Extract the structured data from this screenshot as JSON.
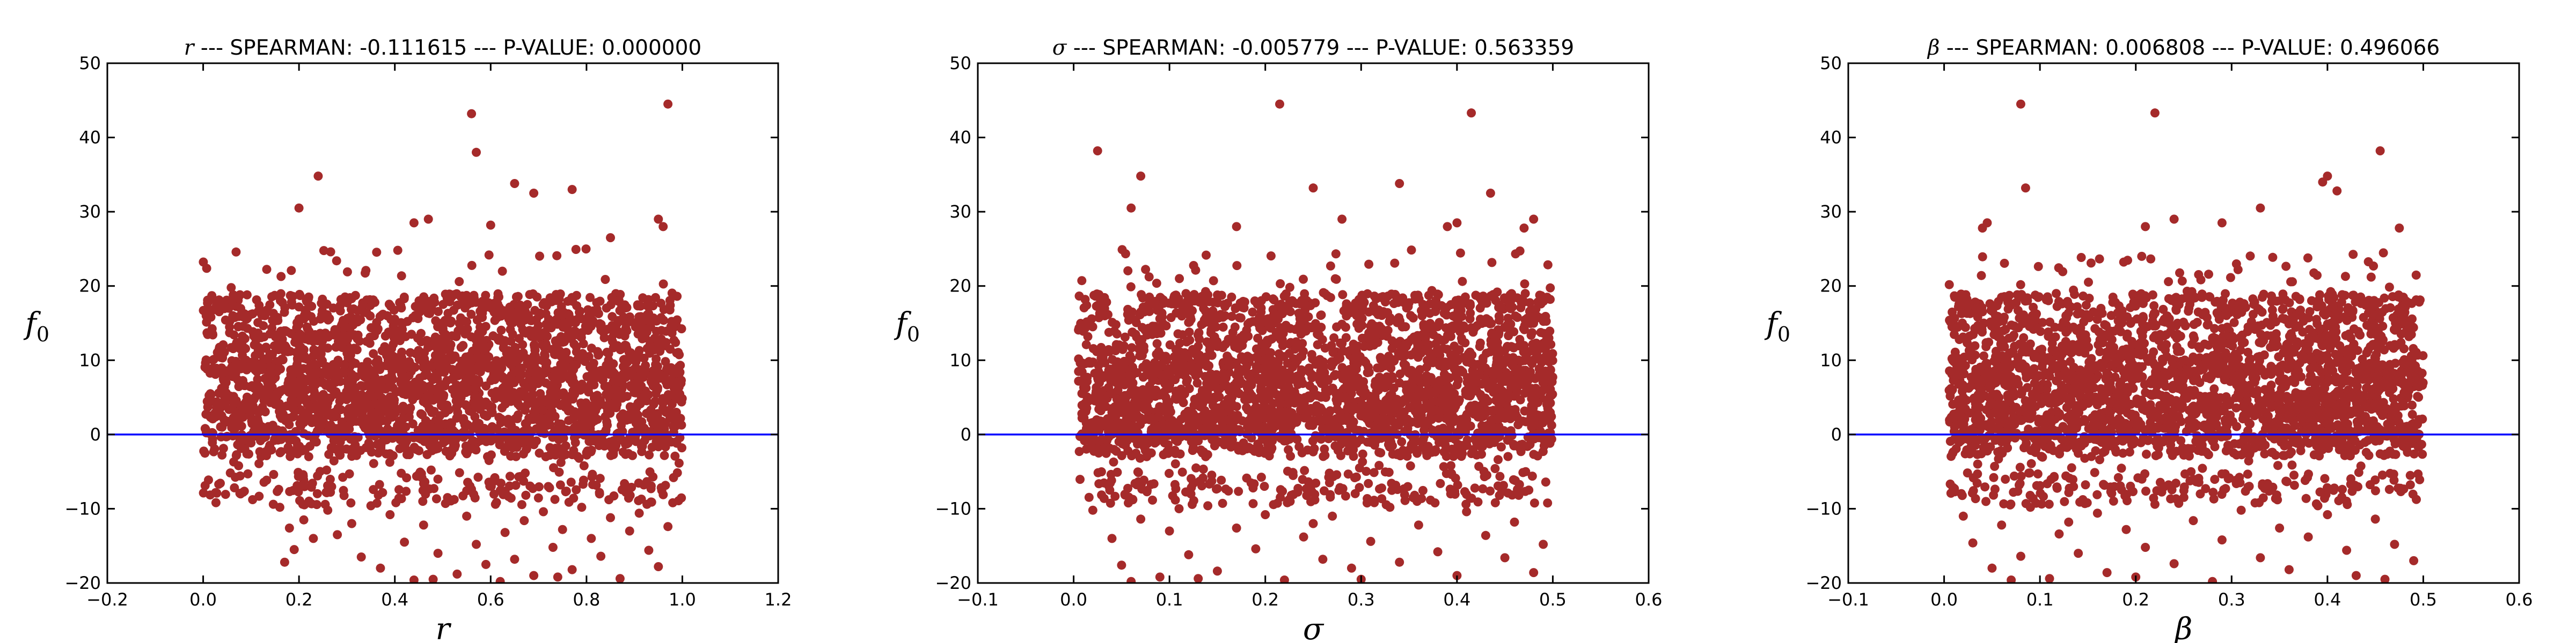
{
  "chart_data": [
    {
      "type": "scatter",
      "title": "r --- SPEARMAN: -0.111615 --- P-VALUE: 0.000000",
      "title_symbol": "r",
      "title_rest": " --- SPEARMAN: -0.111615 --- P-VALUE: 0.000000",
      "xlabel": "r",
      "ylabel": "f",
      "ylabel_sub": "0",
      "xlim": [
        -0.2,
        1.2
      ],
      "ylim": [
        -20,
        50
      ],
      "xticks": [
        -0.2,
        0.0,
        0.2,
        0.4,
        0.6,
        0.8,
        1.0,
        1.2
      ],
      "xtick_labels": [
        "−0.2",
        "0.0",
        "0.2",
        "0.4",
        "0.6",
        "0.8",
        "1.0",
        "1.2"
      ],
      "yticks": [
        -20,
        -10,
        0,
        10,
        20,
        30,
        40,
        50
      ],
      "ytick_labels": [
        "−20",
        "−10",
        "0",
        "10",
        "20",
        "30",
        "40",
        "50"
      ],
      "reference_line_y": 0,
      "reference_line_color": "#0000ff",
      "marker_color": "#a52a2a",
      "grid": false,
      "dense_region": {
        "x": [
          0.0,
          1.0
        ],
        "y": [
          -5,
          25
        ]
      },
      "outliers": [
        [
          0.24,
          34.8
        ],
        [
          0.2,
          30.5
        ],
        [
          0.56,
          43.2
        ],
        [
          0.57,
          38.0
        ],
        [
          0.65,
          33.8
        ],
        [
          0.69,
          32.5
        ],
        [
          0.77,
          33.0
        ],
        [
          0.97,
          44.5
        ],
        [
          0.95,
          29.0
        ],
        [
          0.96,
          28.0
        ],
        [
          0.44,
          28.5
        ],
        [
          0.47,
          29.0
        ],
        [
          0.6,
          28.2
        ],
        [
          0.85,
          26.5
        ],
        [
          0.16,
          -9.8
        ],
        [
          0.18,
          -12.6
        ],
        [
          0.19,
          -15.5
        ],
        [
          0.17,
          -17.2
        ],
        [
          0.21,
          -11.5
        ],
        [
          0.23,
          -14.0
        ],
        [
          0.26,
          -10.2
        ],
        [
          0.28,
          -13.5
        ],
        [
          0.31,
          -12.0
        ],
        [
          0.33,
          -16.5
        ],
        [
          0.35,
          -9.6
        ],
        [
          0.37,
          -18.0
        ],
        [
          0.39,
          -10.8
        ],
        [
          0.42,
          -14.5
        ],
        [
          0.44,
          -19.6
        ],
        [
          0.46,
          -12.2
        ],
        [
          0.49,
          -16.0
        ],
        [
          0.51,
          -8.5
        ],
        [
          0.53,
          -18.8
        ],
        [
          0.55,
          -11.0
        ],
        [
          0.57,
          -14.8
        ],
        [
          0.59,
          -17.5
        ],
        [
          0.61,
          -9.4
        ],
        [
          0.63,
          -13.2
        ],
        [
          0.65,
          -16.8
        ],
        [
          0.67,
          -11.6
        ],
        [
          0.69,
          -19.0
        ],
        [
          0.71,
          -10.4
        ],
        [
          0.73,
          -15.2
        ],
        [
          0.75,
          -12.8
        ],
        [
          0.77,
          -18.2
        ],
        [
          0.79,
          -9.8
        ],
        [
          0.81,
          -14.0
        ],
        [
          0.83,
          -16.4
        ],
        [
          0.85,
          -11.2
        ],
        [
          0.87,
          -19.4
        ],
        [
          0.89,
          -13.0
        ],
        [
          0.91,
          -10.6
        ],
        [
          0.93,
          -15.6
        ],
        [
          0.95,
          -17.8
        ],
        [
          0.97,
          -12.4
        ],
        [
          0.98,
          -9.2
        ],
        [
          0.62,
          -19.8
        ],
        [
          0.48,
          -19.5
        ],
        [
          0.74,
          -19.2
        ]
      ]
    },
    {
      "type": "scatter",
      "title": "σ --- SPEARMAN: -0.005779 --- P-VALUE: 0.563359",
      "title_symbol": "σ",
      "title_rest": " --- SPEARMAN: -0.005779 --- P-VALUE: 0.563359",
      "xlabel": "σ",
      "ylabel": "f",
      "ylabel_sub": "0",
      "xlim": [
        -0.1,
        0.6
      ],
      "ylim": [
        -20,
        50
      ],
      "xticks": [
        -0.1,
        0.0,
        0.1,
        0.2,
        0.3,
        0.4,
        0.5,
        0.6
      ],
      "xtick_labels": [
        "−0.1",
        "0.0",
        "0.1",
        "0.2",
        "0.3",
        "0.4",
        "0.5",
        "0.6"
      ],
      "yticks": [
        -20,
        -10,
        0,
        10,
        20,
        30,
        40,
        50
      ],
      "ytick_labels": [
        "−20",
        "−10",
        "0",
        "10",
        "20",
        "30",
        "40",
        "50"
      ],
      "reference_line_y": 0,
      "reference_line_color": "#0000ff",
      "marker_color": "#a52a2a",
      "grid": false,
      "dense_region": {
        "x": [
          0.005,
          0.5
        ],
        "y": [
          -5,
          25
        ]
      },
      "outliers": [
        [
          0.025,
          38.2
        ],
        [
          0.07,
          34.8
        ],
        [
          0.06,
          30.5
        ],
        [
          0.215,
          44.5
        ],
        [
          0.25,
          33.2
        ],
        [
          0.28,
          29.0
        ],
        [
          0.34,
          33.8
        ],
        [
          0.415,
          43.3
        ],
        [
          0.435,
          32.5
        ],
        [
          0.4,
          28.5
        ],
        [
          0.48,
          29.0
        ],
        [
          0.47,
          27.8
        ],
        [
          0.17,
          28.0
        ],
        [
          0.39,
          28.0
        ],
        [
          0.02,
          -10.2
        ],
        [
          0.04,
          -14.0
        ],
        [
          0.05,
          -17.6
        ],
        [
          0.07,
          -11.4
        ],
        [
          0.09,
          -19.2
        ],
        [
          0.1,
          -13.0
        ],
        [
          0.12,
          -16.2
        ],
        [
          0.14,
          -9.6
        ],
        [
          0.15,
          -18.4
        ],
        [
          0.17,
          -12.6
        ],
        [
          0.19,
          -15.4
        ],
        [
          0.2,
          -10.8
        ],
        [
          0.22,
          -19.6
        ],
        [
          0.24,
          -13.8
        ],
        [
          0.26,
          -16.8
        ],
        [
          0.27,
          -11.0
        ],
        [
          0.29,
          -18.0
        ],
        [
          0.31,
          -14.4
        ],
        [
          0.33,
          -9.8
        ],
        [
          0.34,
          -17.2
        ],
        [
          0.36,
          -12.2
        ],
        [
          0.38,
          -15.8
        ],
        [
          0.4,
          -19.0
        ],
        [
          0.41,
          -10.4
        ],
        [
          0.43,
          -13.6
        ],
        [
          0.45,
          -16.6
        ],
        [
          0.46,
          -11.8
        ],
        [
          0.48,
          -18.6
        ],
        [
          0.49,
          -14.8
        ],
        [
          0.06,
          -19.8
        ],
        [
          0.13,
          -19.4
        ],
        [
          0.3,
          -19.5
        ],
        [
          0.44,
          -9.2
        ],
        [
          0.11,
          -10.0
        ],
        [
          0.25,
          -12.0
        ]
      ]
    },
    {
      "type": "scatter",
      "title": "β --- SPEARMAN: 0.006808 --- P-VALUE: 0.496066",
      "title_symbol": "β",
      "title_rest": " --- SPEARMAN: 0.006808 --- P-VALUE: 0.496066",
      "xlabel": "β",
      "ylabel": "f",
      "ylabel_sub": "0",
      "xlim": [
        -0.1,
        0.6
      ],
      "ylim": [
        -20,
        50
      ],
      "xticks": [
        -0.1,
        0.0,
        0.1,
        0.2,
        0.3,
        0.4,
        0.5,
        0.6
      ],
      "xtick_labels": [
        "−0.1",
        "0.0",
        "0.1",
        "0.2",
        "0.3",
        "0.4",
        "0.5",
        "0.6"
      ],
      "yticks": [
        -20,
        -10,
        0,
        10,
        20,
        30,
        40,
        50
      ],
      "ytick_labels": [
        "−20",
        "−10",
        "0",
        "10",
        "20",
        "30",
        "40",
        "50"
      ],
      "reference_line_y": 0,
      "reference_line_color": "#0000ff",
      "marker_color": "#a52a2a",
      "grid": false,
      "dense_region": {
        "x": [
          0.005,
          0.5
        ],
        "y": [
          -5,
          25
        ]
      },
      "outliers": [
        [
          0.08,
          44.5
        ],
        [
          0.085,
          33.2
        ],
        [
          0.045,
          28.5
        ],
        [
          0.04,
          27.8
        ],
        [
          0.22,
          43.3
        ],
        [
          0.24,
          29.0
        ],
        [
          0.21,
          28.0
        ],
        [
          0.29,
          28.5
        ],
        [
          0.33,
          30.5
        ],
        [
          0.4,
          34.8
        ],
        [
          0.395,
          34.0
        ],
        [
          0.41,
          32.8
        ],
        [
          0.455,
          38.2
        ],
        [
          0.475,
          27.8
        ],
        [
          0.02,
          -11.0
        ],
        [
          0.03,
          -14.6
        ],
        [
          0.05,
          -18.0
        ],
        [
          0.06,
          -12.2
        ],
        [
          0.08,
          -16.4
        ],
        [
          0.09,
          -9.8
        ],
        [
          0.11,
          -19.4
        ],
        [
          0.12,
          -13.4
        ],
        [
          0.14,
          -16.0
        ],
        [
          0.16,
          -10.6
        ],
        [
          0.17,
          -18.6
        ],
        [
          0.19,
          -12.8
        ],
        [
          0.21,
          -15.2
        ],
        [
          0.22,
          -9.4
        ],
        [
          0.24,
          -17.4
        ],
        [
          0.26,
          -11.6
        ],
        [
          0.28,
          -19.8
        ],
        [
          0.29,
          -14.2
        ],
        [
          0.31,
          -10.2
        ],
        [
          0.33,
          -16.6
        ],
        [
          0.35,
          -12.6
        ],
        [
          0.36,
          -18.2
        ],
        [
          0.38,
          -13.8
        ],
        [
          0.4,
          -10.8
        ],
        [
          0.42,
          -15.6
        ],
        [
          0.43,
          -19.0
        ],
        [
          0.45,
          -11.4
        ],
        [
          0.47,
          -14.8
        ],
        [
          0.49,
          -17.0
        ],
        [
          0.07,
          -19.6
        ],
        [
          0.2,
          -19.2
        ],
        [
          0.39,
          -9.6
        ],
        [
          0.13,
          -11.8
        ],
        [
          0.46,
          -19.5
        ]
      ]
    }
  ]
}
